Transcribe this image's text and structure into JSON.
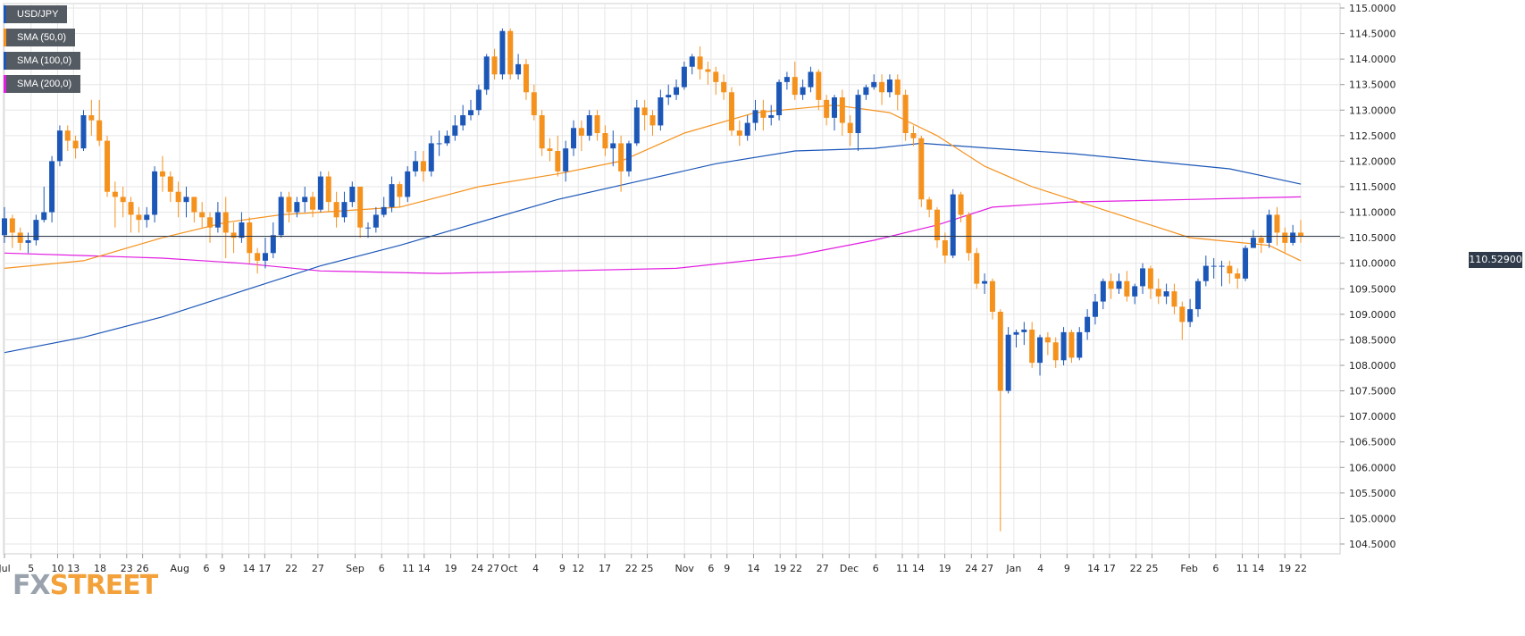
{
  "legend": [
    {
      "label": "USD/JPY",
      "color": "#1c57b8"
    },
    {
      "label": "SMA (50,0)",
      "color": "#f5921e"
    },
    {
      "label": "SMA (100,0)",
      "color": "#1c57b8"
    },
    {
      "label": "SMA (200,0)",
      "color": "#e11ee1"
    }
  ],
  "brand": {
    "fx": "FX",
    "street": "STREET"
  },
  "last_price": "110.52900",
  "colors": {
    "up": "#1c57b8",
    "down": "#f5921e",
    "sma50": "#f5921e",
    "sma100": "#1c57b8",
    "sma200": "#e11ee1",
    "last_line": "#2f3a4a",
    "grid": "#e6e6e6"
  },
  "chart_data": {
    "type": "candlestick",
    "symbol": "USD/JPY",
    "timeframe": "daily",
    "ylim": [
      104.25,
      115.0
    ],
    "y_ticks": [
      "115.0000",
      "114.5000",
      "114.0000",
      "113.5000",
      "113.0000",
      "112.5000",
      "112.0000",
      "111.5000",
      "111.0000",
      "110.5000",
      "110.0000",
      "109.5000",
      "109.0000",
      "108.5000",
      "108.0000",
      "107.5000",
      "107.0000",
      "106.5000",
      "106.0000",
      "105.5000",
      "105.0000",
      "104.5000"
    ],
    "x_ticks": [
      "Jul",
      "5",
      "10",
      "13",
      "18",
      "23",
      "26",
      "Aug",
      "6",
      "9",
      "14",
      "17",
      "22",
      "27",
      "Sep",
      "6",
      "11",
      "14",
      "19",
      "24",
      "27",
      "Oct",
      "4",
      "9",
      "12",
      "17",
      "22",
      "25",
      "Nov",
      "6",
      "9",
      "14",
      "19",
      "22",
      "27",
      "Dec",
      "6",
      "11",
      "14",
      "19",
      "24",
      "27",
      "Jan",
      "4",
      "9",
      "14",
      "17",
      "22",
      "25",
      "Feb",
      "6",
      "11",
      "14",
      "19",
      "22"
    ],
    "candles": [
      [
        110.55,
        110.88,
        111.1,
        110.4
      ],
      [
        110.88,
        110.6,
        110.95,
        110.3
      ],
      [
        110.6,
        110.4,
        110.7,
        110.25
      ],
      [
        110.4,
        110.45,
        110.6,
        110.2
      ],
      [
        110.45,
        110.85,
        110.95,
        110.35
      ],
      [
        110.85,
        111.0,
        111.5,
        110.8
      ],
      [
        111.0,
        112.0,
        112.1,
        110.8
      ],
      [
        112.0,
        112.6,
        112.7,
        111.9
      ],
      [
        112.6,
        112.4,
        112.7,
        112.2
      ],
      [
        112.4,
        112.25,
        112.5,
        112.05
      ],
      [
        112.25,
        112.9,
        113.0,
        112.2
      ],
      [
        112.9,
        112.8,
        113.2,
        112.5
      ],
      [
        112.8,
        112.4,
        113.2,
        112.3
      ],
      [
        112.4,
        111.4,
        112.5,
        111.3
      ],
      [
        111.4,
        111.3,
        111.6,
        110.7
      ],
      [
        111.3,
        111.2,
        111.5,
        110.9
      ],
      [
        111.2,
        110.95,
        111.3,
        110.6
      ],
      [
        110.95,
        110.85,
        111.1,
        110.6
      ],
      [
        110.85,
        110.95,
        111.1,
        110.7
      ],
      [
        110.95,
        111.8,
        111.9,
        110.8
      ],
      [
        111.8,
        111.7,
        112.1,
        111.4
      ],
      [
        111.7,
        111.4,
        111.8,
        111.2
      ],
      [
        111.4,
        111.2,
        111.6,
        110.9
      ],
      [
        111.2,
        111.3,
        111.5,
        110.9
      ],
      [
        111.3,
        111.0,
        111.3,
        110.8
      ],
      [
        111.0,
        110.9,
        111.2,
        110.7
      ],
      [
        110.9,
        110.7,
        111.0,
        110.4
      ],
      [
        110.7,
        111.0,
        111.2,
        110.6
      ],
      [
        111.0,
        110.6,
        111.3,
        110.1
      ],
      [
        110.6,
        110.5,
        110.8,
        110.2
      ],
      [
        110.5,
        110.8,
        111.0,
        110.4
      ],
      [
        110.8,
        110.2,
        110.9,
        110.0
      ],
      [
        110.2,
        110.05,
        110.3,
        109.8
      ],
      [
        110.05,
        110.2,
        110.5,
        109.9
      ],
      [
        110.2,
        110.55,
        110.8,
        110.1
      ],
      [
        110.55,
        111.3,
        111.4,
        110.5
      ],
      [
        111.3,
        111.0,
        111.4,
        110.8
      ],
      [
        111.0,
        111.2,
        111.3,
        110.9
      ],
      [
        111.2,
        111.3,
        111.5,
        111.0
      ],
      [
        111.3,
        111.05,
        111.4,
        110.9
      ],
      [
        111.05,
        111.7,
        111.8,
        111.0
      ],
      [
        111.7,
        111.2,
        111.8,
        111.0
      ],
      [
        111.2,
        110.9,
        111.4,
        110.7
      ],
      [
        110.9,
        111.2,
        111.4,
        110.8
      ],
      [
        111.2,
        111.5,
        111.6,
        111.1
      ],
      [
        111.5,
        110.7,
        111.5,
        110.5
      ],
      [
        110.7,
        110.7,
        110.8,
        110.5
      ],
      [
        110.7,
        110.95,
        111.1,
        110.6
      ],
      [
        110.95,
        111.1,
        111.3,
        110.9
      ],
      [
        111.1,
        111.55,
        111.7,
        111.0
      ],
      [
        111.55,
        111.3,
        111.6,
        111.1
      ],
      [
        111.3,
        111.8,
        111.9,
        111.2
      ],
      [
        111.8,
        112.0,
        112.2,
        111.7
      ],
      [
        112.0,
        111.8,
        112.2,
        111.6
      ],
      [
        111.8,
        112.35,
        112.5,
        111.7
      ],
      [
        112.35,
        112.35,
        112.6,
        112.1
      ],
      [
        112.35,
        112.5,
        112.6,
        112.3
      ],
      [
        112.5,
        112.7,
        112.9,
        112.4
      ],
      [
        112.7,
        112.9,
        113.1,
        112.6
      ],
      [
        112.9,
        113.0,
        113.2,
        112.8
      ],
      [
        113.0,
        113.4,
        113.5,
        112.9
      ],
      [
        113.4,
        114.05,
        114.1,
        113.3
      ],
      [
        114.05,
        113.7,
        114.2,
        113.6
      ],
      [
        113.7,
        114.55,
        114.6,
        113.6
      ],
      [
        114.55,
        113.7,
        114.6,
        113.6
      ],
      [
        113.7,
        113.9,
        114.1,
        113.6
      ],
      [
        113.9,
        113.35,
        114.0,
        113.2
      ],
      [
        113.35,
        112.9,
        113.5,
        112.8
      ],
      [
        112.9,
        112.25,
        113.0,
        112.1
      ],
      [
        112.25,
        112.2,
        112.45,
        112.0
      ],
      [
        112.2,
        111.8,
        112.5,
        111.7
      ],
      [
        111.8,
        112.25,
        112.4,
        111.6
      ],
      [
        112.25,
        112.65,
        112.8,
        112.1
      ],
      [
        112.65,
        112.5,
        112.8,
        112.2
      ],
      [
        112.5,
        112.9,
        113.0,
        112.4
      ],
      [
        112.9,
        112.55,
        113.0,
        112.4
      ],
      [
        112.55,
        112.25,
        112.7,
        112.1
      ],
      [
        112.25,
        112.35,
        112.6,
        111.9
      ],
      [
        112.35,
        111.8,
        112.5,
        111.4
      ],
      [
        111.8,
        112.35,
        112.4,
        111.7
      ],
      [
        112.35,
        113.05,
        113.2,
        112.3
      ],
      [
        113.05,
        112.9,
        113.2,
        112.6
      ],
      [
        112.9,
        112.7,
        113.0,
        112.5
      ],
      [
        112.7,
        113.25,
        113.4,
        112.6
      ],
      [
        113.25,
        113.3,
        113.5,
        113.1
      ],
      [
        113.3,
        113.45,
        113.6,
        113.2
      ],
      [
        113.45,
        113.85,
        113.95,
        113.4
      ],
      [
        113.85,
        114.05,
        114.1,
        113.7
      ],
      [
        114.05,
        113.8,
        114.25,
        113.6
      ],
      [
        113.8,
        113.75,
        113.95,
        113.5
      ],
      [
        113.75,
        113.55,
        113.85,
        113.3
      ],
      [
        113.55,
        113.35,
        113.7,
        113.2
      ],
      [
        113.35,
        112.6,
        113.45,
        112.5
      ],
      [
        112.6,
        112.5,
        112.8,
        112.3
      ],
      [
        112.5,
        112.75,
        112.9,
        112.4
      ],
      [
        112.75,
        113.0,
        113.2,
        112.6
      ],
      [
        113.0,
        112.85,
        113.2,
        112.6
      ],
      [
        112.85,
        112.9,
        113.1,
        112.7
      ],
      [
        112.9,
        113.55,
        113.6,
        112.8
      ],
      [
        113.55,
        113.65,
        113.75,
        113.4
      ],
      [
        113.65,
        113.3,
        113.95,
        113.2
      ],
      [
        113.3,
        113.45,
        113.6,
        113.2
      ],
      [
        113.45,
        113.75,
        113.85,
        113.35
      ],
      [
        113.75,
        113.2,
        113.8,
        113.0
      ],
      [
        113.2,
        112.85,
        113.3,
        112.7
      ],
      [
        112.85,
        113.25,
        113.3,
        112.6
      ],
      [
        113.25,
        112.75,
        113.4,
        112.5
      ],
      [
        112.75,
        112.55,
        112.9,
        112.3
      ],
      [
        112.55,
        113.3,
        113.4,
        112.2
      ],
      [
        113.3,
        113.45,
        113.5,
        113.2
      ],
      [
        113.45,
        113.55,
        113.7,
        113.4
      ],
      [
        113.55,
        113.35,
        113.7,
        113.1
      ],
      [
        113.35,
        113.6,
        113.7,
        113.25
      ],
      [
        113.6,
        113.3,
        113.7,
        113.0
      ],
      [
        113.3,
        112.55,
        113.4,
        112.4
      ],
      [
        112.55,
        112.45,
        112.7,
        112.3
      ],
      [
        112.45,
        111.25,
        112.5,
        111.1
      ],
      [
        111.25,
        111.05,
        111.3,
        110.9
      ],
      [
        111.05,
        110.45,
        111.1,
        110.3
      ],
      [
        110.45,
        110.15,
        110.6,
        110.0
      ],
      [
        110.15,
        111.35,
        111.45,
        110.1
      ],
      [
        111.35,
        110.95,
        111.4,
        110.8
      ],
      [
        110.95,
        110.2,
        111.0,
        110.05
      ],
      [
        110.2,
        109.6,
        110.3,
        109.5
      ],
      [
        109.6,
        109.65,
        109.8,
        109.4
      ],
      [
        109.65,
        109.05,
        109.7,
        108.9
      ],
      [
        109.05,
        107.5,
        109.1,
        104.75
      ],
      [
        107.5,
        108.6,
        108.75,
        107.45
      ],
      [
        108.6,
        108.65,
        108.7,
        108.35
      ],
      [
        108.65,
        108.7,
        108.85,
        108.4
      ],
      [
        108.7,
        108.05,
        108.85,
        107.95
      ],
      [
        108.05,
        108.55,
        108.6,
        107.8
      ],
      [
        108.55,
        108.45,
        108.65,
        108.2
      ],
      [
        108.45,
        108.1,
        108.55,
        107.95
      ],
      [
        108.1,
        108.65,
        108.75,
        108.0
      ],
      [
        108.65,
        108.15,
        108.7,
        108.05
      ],
      [
        108.15,
        108.65,
        108.75,
        108.1
      ],
      [
        108.65,
        108.95,
        109.1,
        108.5
      ],
      [
        108.95,
        109.25,
        109.4,
        108.8
      ],
      [
        109.25,
        109.65,
        109.7,
        109.1
      ],
      [
        109.65,
        109.5,
        109.8,
        109.3
      ],
      [
        109.5,
        109.65,
        109.8,
        109.4
      ],
      [
        109.65,
        109.35,
        109.85,
        109.25
      ],
      [
        109.35,
        109.55,
        109.6,
        109.2
      ],
      [
        109.55,
        109.9,
        110.0,
        109.4
      ],
      [
        109.9,
        109.5,
        109.95,
        109.3
      ],
      [
        109.5,
        109.35,
        109.7,
        109.2
      ],
      [
        109.35,
        109.45,
        109.6,
        109.2
      ],
      [
        109.45,
        109.15,
        109.6,
        109.0
      ],
      [
        109.15,
        108.85,
        109.25,
        108.5
      ],
      [
        108.85,
        109.1,
        109.3,
        108.75
      ],
      [
        109.1,
        109.65,
        109.7,
        108.95
      ],
      [
        109.65,
        109.95,
        110.15,
        109.55
      ],
      [
        109.95,
        109.95,
        110.1,
        109.7
      ],
      [
        109.95,
        109.95,
        110.05,
        109.55
      ],
      [
        109.95,
        109.8,
        110.05,
        109.6
      ],
      [
        109.8,
        109.7,
        109.9,
        109.5
      ],
      [
        109.7,
        110.3,
        110.35,
        109.65
      ],
      [
        110.3,
        110.5,
        110.65,
        110.3
      ],
      [
        110.5,
        110.4,
        110.55,
        110.2
      ],
      [
        110.4,
        110.95,
        111.05,
        110.3
      ],
      [
        110.95,
        110.6,
        111.1,
        110.35
      ],
      [
        110.6,
        110.4,
        110.7,
        110.2
      ],
      [
        110.4,
        110.6,
        110.75,
        110.35
      ],
      [
        110.6,
        110.53,
        110.85,
        110.4
      ]
    ],
    "sma50": [
      [
        0,
        109.9
      ],
      [
        10,
        110.05
      ],
      [
        20,
        110.5
      ],
      [
        28,
        110.8
      ],
      [
        35,
        110.95
      ],
      [
        50,
        111.1
      ],
      [
        60,
        111.5
      ],
      [
        70,
        111.75
      ],
      [
        78,
        112.0
      ],
      [
        86,
        112.55
      ],
      [
        95,
        112.95
      ],
      [
        105,
        113.1
      ],
      [
        112,
        112.95
      ],
      [
        118,
        112.5
      ],
      [
        124,
        111.9
      ],
      [
        130,
        111.5
      ],
      [
        140,
        111.0
      ],
      [
        150,
        110.5
      ],
      [
        160,
        110.35
      ],
      [
        164,
        110.05
      ]
    ],
    "sma100": [
      [
        0,
        108.25
      ],
      [
        10,
        108.55
      ],
      [
        20,
        108.95
      ],
      [
        30,
        109.45
      ],
      [
        40,
        109.95
      ],
      [
        50,
        110.35
      ],
      [
        60,
        110.8
      ],
      [
        70,
        111.25
      ],
      [
        80,
        111.6
      ],
      [
        90,
        111.95
      ],
      [
        100,
        112.2
      ],
      [
        110,
        112.25
      ],
      [
        116,
        112.35
      ],
      [
        125,
        112.25
      ],
      [
        135,
        112.15
      ],
      [
        145,
        112.0
      ],
      [
        155,
        111.85
      ],
      [
        164,
        111.55
      ]
    ],
    "sma200": [
      [
        0,
        110.2
      ],
      [
        10,
        110.15
      ],
      [
        20,
        110.1
      ],
      [
        30,
        110.0
      ],
      [
        40,
        109.85
      ],
      [
        55,
        109.8
      ],
      [
        70,
        109.85
      ],
      [
        85,
        109.9
      ],
      [
        100,
        110.15
      ],
      [
        110,
        110.45
      ],
      [
        118,
        110.75
      ],
      [
        125,
        111.1
      ],
      [
        135,
        111.2
      ],
      [
        150,
        111.25
      ],
      [
        164,
        111.3
      ]
    ],
    "last": 110.529
  }
}
